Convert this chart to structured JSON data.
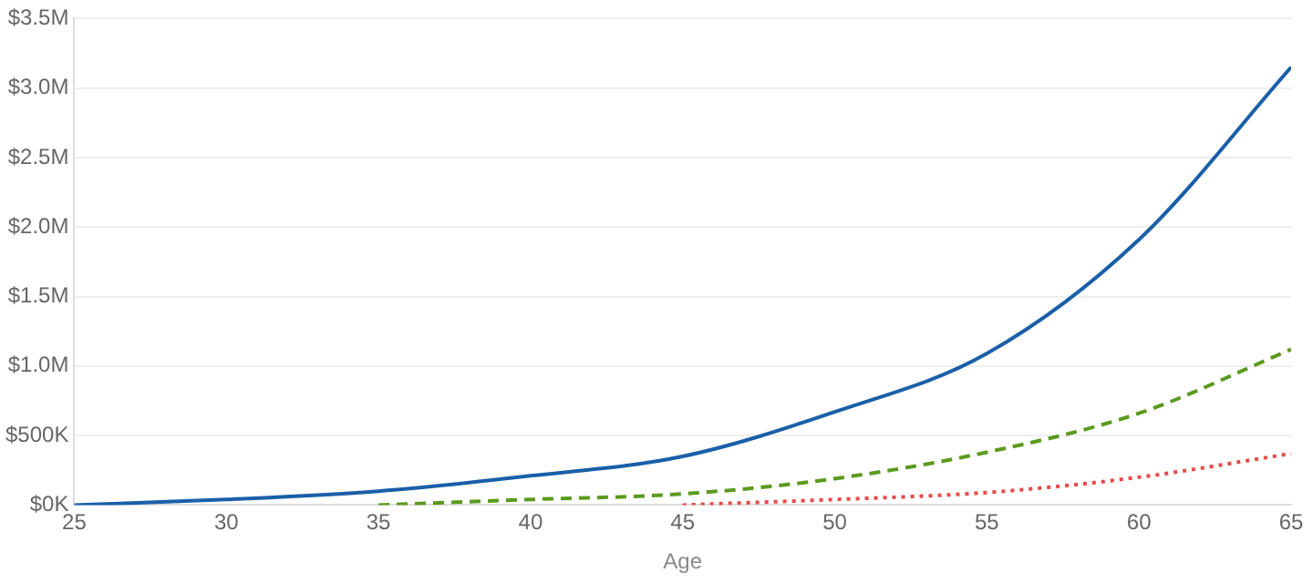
{
  "chart_data": {
    "type": "line",
    "xlabel": "Age",
    "grid": "y",
    "legend": false,
    "marker": "none",
    "xlim": [
      25,
      65
    ],
    "xticks": [
      25,
      30,
      35,
      40,
      45,
      50,
      55,
      60,
      65
    ],
    "ylim": [
      0,
      3500000
    ],
    "yticks": [
      {
        "value": 0,
        "label": "$0K"
      },
      {
        "value": 500000,
        "label": "$500K"
      },
      {
        "value": 1000000,
        "label": "$1.0M"
      },
      {
        "value": 1500000,
        "label": "$1.5M"
      },
      {
        "value": 2000000,
        "label": "$2.0M"
      },
      {
        "value": 2500000,
        "label": "$2.5M"
      },
      {
        "value": 3000000,
        "label": "$3.0M"
      },
      {
        "value": 3500000,
        "label": "$3.5M"
      }
    ],
    "series": [
      {
        "color": "#1a5fa8",
        "line_style": "solid",
        "x": [
          25,
          30,
          35,
          40,
          45,
          50,
          55,
          60,
          65
        ],
        "values": [
          0,
          40000,
          100000,
          210000,
          350000,
          670000,
          1090000,
          1910000,
          3150000
        ]
      },
      {
        "color": "#5a9a1e",
        "line_style": "dashed",
        "x": [
          35,
          40,
          45,
          50,
          55,
          60,
          65
        ],
        "values": [
          0,
          40000,
          80000,
          190000,
          380000,
          660000,
          1120000
        ]
      },
      {
        "color": "#e84a4a",
        "line_style": "dotted",
        "x": [
          45,
          50,
          55,
          60,
          65
        ],
        "values": [
          0,
          40000,
          90000,
          200000,
          370000
        ]
      }
    ]
  }
}
